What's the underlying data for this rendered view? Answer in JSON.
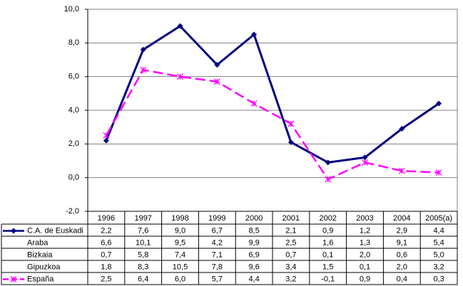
{
  "chart_data": {
    "type": "line",
    "categories": [
      "1996",
      "1997",
      "1998",
      "1999",
      "2000",
      "2001",
      "2002",
      "2003",
      "2004",
      "2005(a)"
    ],
    "ylim": [
      -2,
      10
    ],
    "yticks": [
      {
        "value": -2,
        "label": "-2,0"
      },
      {
        "value": 0,
        "label": "0,0"
      },
      {
        "value": 2,
        "label": "2,0"
      },
      {
        "value": 4,
        "label": "4,0"
      },
      {
        "value": 6,
        "label": "6,0"
      },
      {
        "value": 8,
        "label": "8,0"
      },
      {
        "value": 10,
        "label": "10,0"
      }
    ],
    "grid": true,
    "series": [
      {
        "name": "C.A. de Euskadi",
        "color": "#000080",
        "line_style": "solid",
        "marker": "diamond",
        "values": [
          2.2,
          7.6,
          9.0,
          6.7,
          8.5,
          2.1,
          0.9,
          1.2,
          2.9,
          4.4
        ],
        "value_labels": [
          "2,2",
          "7,6",
          "9,0",
          "6,7",
          "8,5",
          "2,1",
          "0,9",
          "1,2",
          "2,9",
          "4,4"
        ]
      },
      {
        "name": "Araba",
        "line_style": "none",
        "values": [
          6.6,
          10.1,
          9.5,
          4.2,
          9.9,
          2.5,
          1.6,
          1.3,
          9.1,
          5.4
        ],
        "value_labels": [
          "6,6",
          "10,1",
          "9,5",
          "4,2",
          "9,9",
          "2,5",
          "1,6",
          "1,3",
          "9,1",
          "5,4"
        ]
      },
      {
        "name": "Bizkaia",
        "line_style": "none",
        "values": [
          0.7,
          5.8,
          7.4,
          7.1,
          6.9,
          0.7,
          0.1,
          2.0,
          0.6,
          5.0
        ],
        "value_labels": [
          "0,7",
          "5,8",
          "7,4",
          "7,1",
          "6,9",
          "0,7",
          "0,1",
          "2,0",
          "0,6",
          "5,0"
        ]
      },
      {
        "name": "Gipuzkoa",
        "line_style": "none",
        "values": [
          1.8,
          8.3,
          10.5,
          7.8,
          9.6,
          3.4,
          1.5,
          0.1,
          2.0,
          3.2
        ],
        "value_labels": [
          "1,8",
          "8,3",
          "10,5",
          "7,8",
          "9,6",
          "3,4",
          "1,5",
          "0,1",
          "2,0",
          "3,2"
        ]
      },
      {
        "name": "España",
        "color": "#ff00ff",
        "line_style": "dashed",
        "marker": "star",
        "values": [
          2.5,
          6.4,
          6.0,
          5.7,
          4.4,
          3.2,
          -0.1,
          0.9,
          0.4,
          0.3
        ],
        "value_labels": [
          "2,5",
          "6,4",
          "6,0",
          "5,7",
          "4,4",
          "3,2",
          "-0,1",
          "0,9",
          "0,4",
          "0,3"
        ]
      }
    ]
  }
}
